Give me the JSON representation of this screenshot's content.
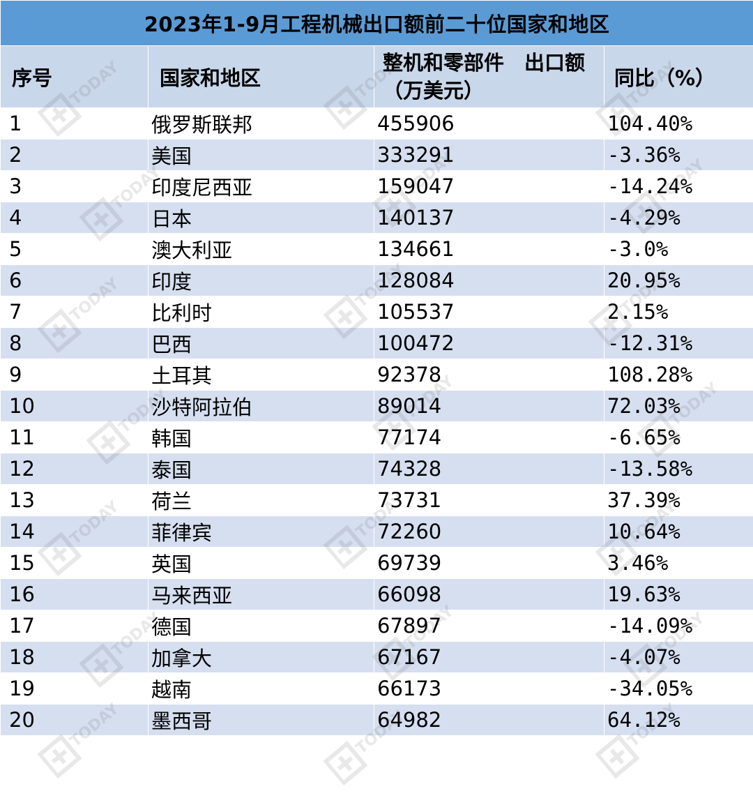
{
  "chart_data": {
    "type": "table",
    "title": "2023年1-9月工程机械出口额前二十位国家和地区",
    "columns": [
      "序号",
      "国家和地区",
      "整机和零部件　出口额（万美元）",
      "同比（%）"
    ],
    "rows": [
      {
        "rank": "1",
        "country": "俄罗斯联邦",
        "value": "455906",
        "yoy": "104.40%"
      },
      {
        "rank": "2",
        "country": "美国",
        "value": "333291",
        "yoy": "-3.36%"
      },
      {
        "rank": "3",
        "country": "印度尼西亚",
        "value": "159047",
        "yoy": "-14.24%"
      },
      {
        "rank": "4",
        "country": "日本",
        "value": "140137",
        "yoy": "-4.29%"
      },
      {
        "rank": "5",
        "country": "澳大利亚",
        "value": "134661",
        "yoy": "-3.0%"
      },
      {
        "rank": "6",
        "country": "印度",
        "value": "128084",
        "yoy": "20.95%"
      },
      {
        "rank": "7",
        "country": "比利时",
        "value": "105537",
        "yoy": "2.15%"
      },
      {
        "rank": "8",
        "country": "巴西",
        "value": "100472",
        "yoy": "-12.31%"
      },
      {
        "rank": "9",
        "country": "土耳其",
        "value": "92378",
        "yoy": "108.28%"
      },
      {
        "rank": "10",
        "country": "沙特阿拉伯",
        "value": "89014",
        "yoy": "72.03%"
      },
      {
        "rank": "11",
        "country": "韩国",
        "value": "77174",
        "yoy": "-6.65%"
      },
      {
        "rank": "12",
        "country": "泰国",
        "value": "74328",
        "yoy": "-13.58%"
      },
      {
        "rank": "13",
        "country": "荷兰",
        "value": "73731",
        "yoy": "37.39%"
      },
      {
        "rank": "14",
        "country": "菲律宾",
        "value": "72260",
        "yoy": "10.64%"
      },
      {
        "rank": "15",
        "country": "英国",
        "value": "69739",
        "yoy": "3.46%"
      },
      {
        "rank": "16",
        "country": "马来西亚",
        "value": "66098",
        "yoy": "19.63%"
      },
      {
        "rank": "17",
        "country": "德国",
        "value": "67897",
        "yoy": "-14.09%"
      },
      {
        "rank": "18",
        "country": "加拿大",
        "value": "67167",
        "yoy": "-4.07%"
      },
      {
        "rank": "19",
        "country": "越南",
        "value": "66173",
        "yoy": "-34.05%"
      },
      {
        "rank": "20",
        "country": "墨西哥",
        "value": "64982",
        "yoy": "64.12%"
      }
    ]
  },
  "watermark": {
    "text": "TODAY"
  },
  "colors": {
    "title_bg": "#5b9bd5",
    "header_bg": "#c9d7ea",
    "stripe_bg": "#d6dff0"
  }
}
